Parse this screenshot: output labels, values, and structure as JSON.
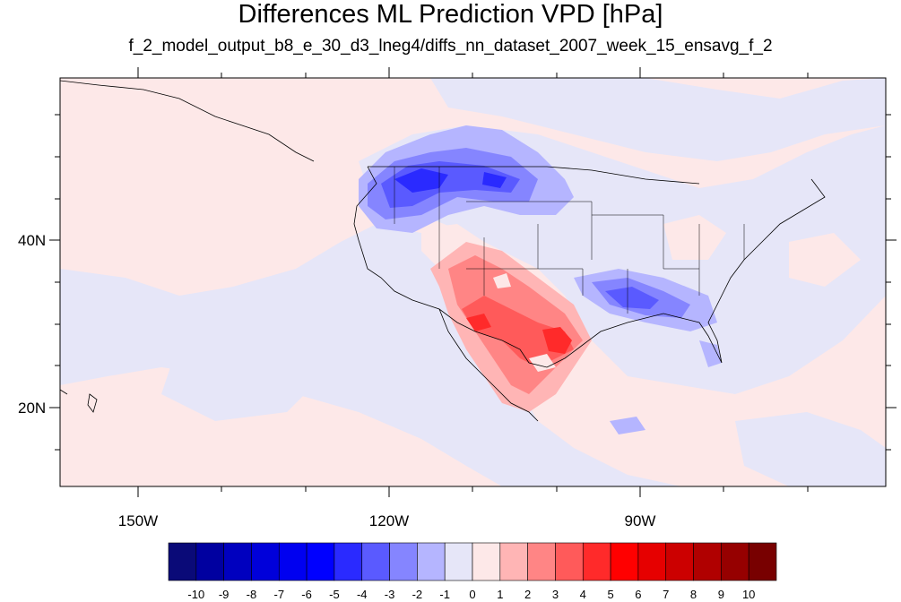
{
  "title": "Differences ML Prediction VPD [hPa]",
  "subtitle": "f_2_model_output_b8_e_30_d3_lneg4/diffs_nn_dataset_2007_week_15_ensavg_f_2",
  "map": {
    "lat_labels": [
      "40N",
      "20N"
    ],
    "lon_labels": [
      "150W",
      "120W",
      "90W"
    ],
    "background_fill": "#fde8e8"
  },
  "colorbar": {
    "labels": [
      "-10",
      "-9",
      "-8",
      "-7",
      "-6",
      "-5",
      "-4",
      "-3",
      "-2",
      "-1",
      "0",
      "1",
      "2",
      "3",
      "4",
      "5",
      "6",
      "7",
      "8",
      "9",
      "10"
    ],
    "colors": [
      "#0a0a78",
      "#0000a0",
      "#0000bf",
      "#0000da",
      "#0000f0",
      "#0000ff",
      "#2a2aff",
      "#5a5aff",
      "#8585ff",
      "#b5b5ff",
      "#e6e6f8",
      "#fde8e8",
      "#ffb5b5",
      "#ff8585",
      "#ff5a5a",
      "#ff2a2a",
      "#ff0000",
      "#e60000",
      "#cc0000",
      "#b00000",
      "#960000",
      "#780000"
    ]
  }
}
